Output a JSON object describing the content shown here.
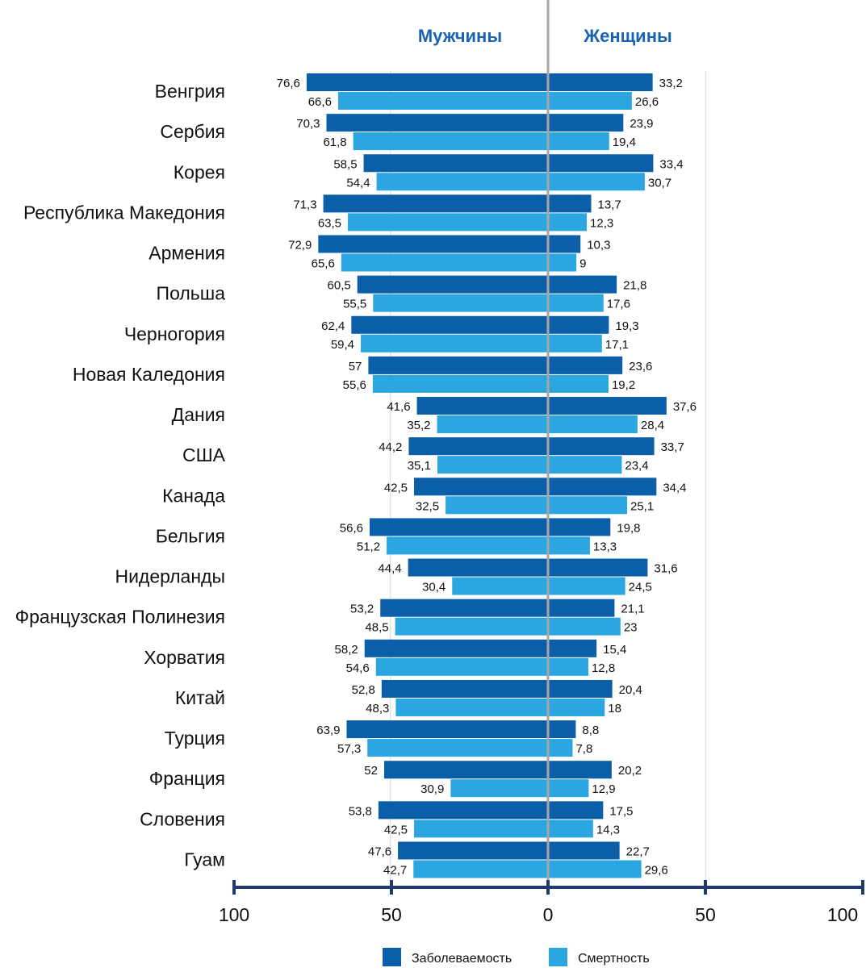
{
  "colors": {
    "incidence": "#0a5fa8",
    "mortality": "#2ba6e0",
    "axis": "#1f3a6e",
    "divider": "#a6a6a6",
    "title": "#1a63b0"
  },
  "chart_data": {
    "type": "bar",
    "orientation": "horizontal",
    "layout": "butterfly",
    "side_titles": {
      "left": "Мужчины",
      "right": "Женщины"
    },
    "categories": [
      "Венгрия",
      "Сербия",
      "Корея",
      "Республика Македония",
      "Армения",
      "Польша",
      "Черногория",
      "Новая Каледония",
      "Дания",
      "США",
      "Канада",
      "Бельгия",
      "Нидерланды",
      "Французская Полинезия",
      "Хорватия",
      "Китай",
      "Турция",
      "Франция",
      "Словения",
      "Гуам"
    ],
    "series": [
      {
        "name": "Заболеваемость",
        "side": "Мужчины",
        "values": [
          76.6,
          70.3,
          58.5,
          71.3,
          72.9,
          60.5,
          62.4,
          57,
          41.6,
          44.2,
          42.5,
          56.6,
          44.4,
          53.2,
          58.2,
          52.8,
          63.9,
          52,
          53.8,
          47.6
        ],
        "labels": [
          "76,6",
          "70,3",
          "58,5",
          "71,3",
          "72,9",
          "60,5",
          "62,4",
          "57",
          "41,6",
          "44,2",
          "42,5",
          "56,6",
          "44,4",
          "53,2",
          "58,2",
          "52,8",
          "63,9",
          "52",
          "53,8",
          "47,6"
        ]
      },
      {
        "name": "Смертность",
        "side": "Мужчины",
        "values": [
          66.6,
          61.8,
          54.4,
          63.5,
          65.6,
          55.5,
          59.4,
          55.6,
          35.2,
          35.1,
          32.5,
          51.2,
          30.4,
          48.5,
          54.6,
          48.3,
          57.3,
          30.9,
          42.5,
          42.7
        ],
        "labels": [
          "66,6",
          "61,8",
          "54,4",
          "63,5",
          "65,6",
          "55,5",
          "59,4",
          "55,6",
          "35,2",
          "35,1",
          "32,5",
          "51,2",
          "30,4",
          "48,5",
          "54,6",
          "48,3",
          "57,3",
          "30,9",
          "42,5",
          "42,7"
        ]
      },
      {
        "name": "Заболеваемость",
        "side": "Женщины",
        "values": [
          33.2,
          23.9,
          33.4,
          13.7,
          10.3,
          21.8,
          19.3,
          23.6,
          37.6,
          33.7,
          34.4,
          19.8,
          31.6,
          21.1,
          15.4,
          20.4,
          8.8,
          20.2,
          17.5,
          22.7
        ],
        "labels": [
          "33,2",
          "23,9",
          "33,4",
          "13,7",
          "10,3",
          "21,8",
          "19,3",
          "23,6",
          "37,6",
          "33,7",
          "34,4",
          "19,8",
          "31,6",
          "21,1",
          "15,4",
          "20,4",
          "8,8",
          "20,2",
          "17,5",
          "22,7"
        ]
      },
      {
        "name": "Смертность",
        "side": "Женщины",
        "values": [
          26.6,
          19.4,
          30.7,
          12.3,
          9,
          17.6,
          17.1,
          19.2,
          28.4,
          23.4,
          25.1,
          13.3,
          24.5,
          23,
          12.8,
          18,
          7.8,
          12.9,
          14.3,
          29.6
        ],
        "labels": [
          "26,6",
          "19,4",
          "30,7",
          "12,3",
          "9",
          "17,6",
          "17,1",
          "19,2",
          "28,4",
          "23,4",
          "25,1",
          "13,3",
          "24,5",
          "23",
          "12,8",
          "18",
          "7,8",
          "12,9",
          "14,3",
          "29,6"
        ]
      }
    ],
    "x_ticks": [
      "100",
      "50",
      "0",
      "50",
      "100"
    ],
    "xlim": [
      -100,
      100
    ],
    "legend": {
      "items": [
        "Заболеваемость",
        "Смертность"
      ],
      "position": "bottom"
    },
    "grid": "vertical lines at 50"
  }
}
